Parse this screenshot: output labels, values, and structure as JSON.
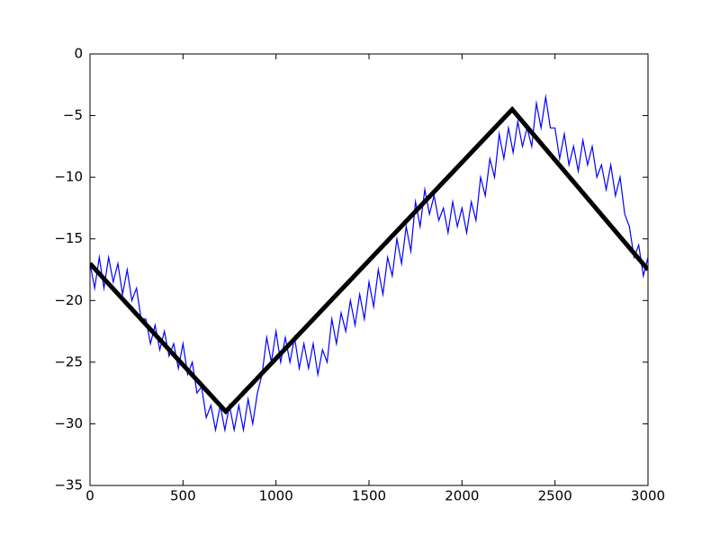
{
  "chart_data": {
    "type": "line",
    "xlim": [
      0,
      3000
    ],
    "ylim": [
      -35,
      0
    ],
    "xticks": [
      0,
      500,
      1000,
      1500,
      2000,
      2500,
      3000
    ],
    "yticks": [
      {
        "value": -35,
        "label": "−35"
      },
      {
        "value": -30,
        "label": "−30"
      },
      {
        "value": -25,
        "label": "−25"
      },
      {
        "value": -20,
        "label": "−20"
      },
      {
        "value": -15,
        "label": "−15"
      },
      {
        "value": -10,
        "label": "−10"
      },
      {
        "value": -5,
        "label": "−5"
      },
      0
    ],
    "series": [
      {
        "color": "#0000ff",
        "width": 1.2,
        "x": [
          0,
          25,
          50,
          75,
          100,
          125,
          150,
          175,
          200,
          225,
          250,
          275,
          300,
          325,
          350,
          375,
          400,
          425,
          450,
          475,
          500,
          525,
          550,
          575,
          600,
          625,
          650,
          675,
          700,
          725,
          750,
          775,
          800,
          825,
          850,
          875,
          900,
          925,
          950,
          975,
          1000,
          1025,
          1050,
          1075,
          1100,
          1125,
          1150,
          1175,
          1200,
          1225,
          1250,
          1275,
          1300,
          1325,
          1350,
          1375,
          1400,
          1425,
          1450,
          1475,
          1500,
          1525,
          1550,
          1575,
          1600,
          1625,
          1650,
          1675,
          1700,
          1725,
          1750,
          1775,
          1800,
          1825,
          1850,
          1875,
          1900,
          1925,
          1950,
          1975,
          2000,
          2025,
          2050,
          2075,
          2100,
          2125,
          2150,
          2175,
          2200,
          2225,
          2250,
          2275,
          2300,
          2325,
          2350,
          2375,
          2400,
          2425,
          2450,
          2475,
          2500,
          2525,
          2550,
          2575,
          2600,
          2625,
          2650,
          2675,
          2700,
          2725,
          2750,
          2775,
          2800,
          2825,
          2850,
          2875,
          2900,
          2925,
          2950,
          2975,
          3000
        ],
        "values": [
          -17,
          -19,
          -16.5,
          -19,
          -16.5,
          -18.5,
          -17,
          -19.5,
          -17.5,
          -20,
          -19,
          -21.5,
          -21.5,
          -23.5,
          -22,
          -24,
          -22.5,
          -24.5,
          -23.5,
          -25.5,
          -23.5,
          -26,
          -25,
          -27.5,
          -27,
          -29.5,
          -28.5,
          -30.5,
          -28.5,
          -30.5,
          -28.5,
          -30.5,
          -28.5,
          -30.5,
          -28,
          -30,
          -27.5,
          -26,
          -23,
          -25,
          -22.5,
          -25,
          -23,
          -25,
          -23,
          -25.5,
          -23.5,
          -25.5,
          -23.5,
          -26,
          -24,
          -25,
          -21.5,
          -23.5,
          -21,
          -22.5,
          -20,
          -22,
          -19.5,
          -21.5,
          -18.5,
          -20.5,
          -17.5,
          -19.5,
          -16.5,
          -18,
          -15,
          -17,
          -14,
          -16,
          -12,
          -14,
          -11,
          -13,
          -11.5,
          -13.5,
          -12.5,
          -14.5,
          -12,
          -14,
          -12.5,
          -14.5,
          -12,
          -13.5,
          -10,
          -11.5,
          -8.5,
          -10,
          -6.5,
          -8.5,
          -6,
          -8,
          -5.5,
          -7.5,
          -6,
          -7.5,
          -4,
          -6,
          -3.5,
          -6,
          -6,
          -8.5,
          -6.5,
          -9,
          -7.5,
          -9.5,
          -7,
          -9,
          -7.5,
          -10,
          -9,
          -11,
          -9,
          -11.5,
          -10,
          -13,
          -14,
          -16.5,
          -15.5,
          -18,
          -16.5
        ]
      },
      {
        "color": "#000000",
        "width": 5,
        "x": [
          0,
          730,
          2270,
          3000
        ],
        "values": [
          -17,
          -29,
          -4.5,
          -17.5
        ]
      }
    ]
  }
}
